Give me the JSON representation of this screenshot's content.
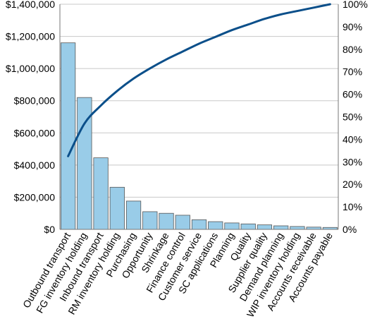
{
  "chart_data": {
    "type": "bar",
    "title": "",
    "xlabel": "",
    "ylabel": "",
    "categories": [
      "Outbound transport",
      "FG inventory holding",
      "Inbound transport",
      "RM inventory holding",
      "Purchasing",
      "Opportunity",
      "Shrinkage",
      "Finance control",
      "Customer service",
      "SC applications",
      "Planning",
      "Quality",
      "Supplier quality",
      "Demand planning",
      "WIP inventory holding",
      "Accounts receivable",
      "Accounts payable"
    ],
    "series": [
      {
        "type": "bar",
        "axis": "left",
        "values": [
          1160000,
          820000,
          445000,
          262000,
          176000,
          110000,
          100000,
          88000,
          60000,
          48000,
          40000,
          34000,
          28000,
          22000,
          18000,
          14000,
          12000
        ]
      },
      {
        "type": "line",
        "axis": "right",
        "unit": "percent",
        "values": [
          32.5,
          47.0,
          55.0,
          61.5,
          67.0,
          71.5,
          75.5,
          79.0,
          82.5,
          85.5,
          88.5,
          91.0,
          93.5,
          95.5,
          97.0,
          98.5,
          100.0
        ]
      }
    ],
    "ylim": [
      0,
      1400000
    ],
    "y2lim": [
      0,
      100
    ],
    "yticks": [
      "$0",
      "$200,000",
      "$400,000",
      "$600,000",
      "$800,000",
      "$1,000,000",
      "$1,200,000",
      "$1,400,000"
    ],
    "y2ticks": [
      "0%",
      "10%",
      "20%",
      "30%",
      "40%",
      "50%",
      "60%",
      "70%",
      "80%",
      "90%",
      "100%"
    ],
    "grid": true,
    "legend": "none",
    "colors": {
      "bar_fill": "#99cce8",
      "bar_stroke": "#555555",
      "line": "#0b4f8a",
      "grid": "#c8c8c8",
      "axis": "#777777"
    }
  }
}
